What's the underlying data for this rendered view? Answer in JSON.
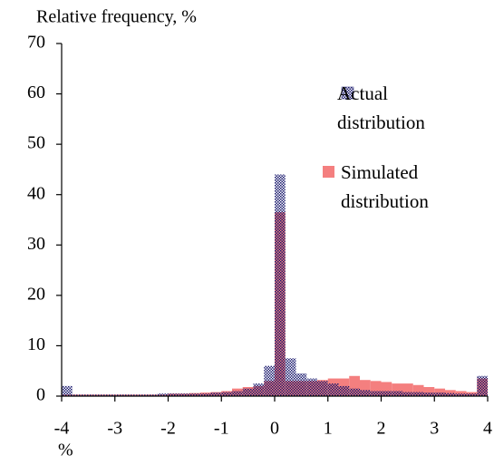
{
  "chart_data": {
    "type": "histogram",
    "title": "Relative frequency, %",
    "x_label": "%",
    "bins": [
      -4,
      -3.8,
      -3.6,
      -3.4,
      -3.2,
      -3,
      -2.8,
      -2.6,
      -2.4,
      -2.2,
      -2,
      -1.8,
      -1.6,
      -1.4,
      -1.2,
      -1,
      -0.8,
      -0.6,
      -0.4,
      -0.2,
      0,
      0.2,
      0.4,
      0.6,
      0.8,
      1,
      1.2,
      1.4,
      1.6,
      1.8,
      2,
      2.2,
      2.4,
      2.6,
      2.8,
      3,
      3.2,
      3.4,
      3.6,
      3.8,
      4
    ],
    "series": [
      {
        "name": "Simulated distribution",
        "color": "#f47f7f",
        "values": [
          0.3,
          0.3,
          0.3,
          0.3,
          0.3,
          0.3,
          0.3,
          0.3,
          0.3,
          0.3,
          0.5,
          0.5,
          0.6,
          0.7,
          0.8,
          1,
          1.5,
          1.8,
          2,
          3,
          36.5,
          3,
          3,
          3,
          3.2,
          3.5,
          3.5,
          4,
          3.2,
          3,
          2.8,
          2.5,
          2.5,
          2.2,
          1.8,
          1.5,
          1.2,
          1,
          0.8,
          3.5
        ]
      },
      {
        "name": "Actual distribution",
        "color": "#1a1a6e",
        "values": [
          2,
          0.3,
          0.3,
          0.3,
          0.3,
          0.3,
          0.3,
          0.3,
          0.3,
          0.5,
          0.5,
          0.5,
          0.5,
          0.5,
          0.7,
          0.8,
          1,
          1.5,
          2.5,
          6,
          44,
          7.5,
          4.5,
          3.5,
          3,
          2.5,
          2,
          1.5,
          1.2,
          1,
          1,
          1,
          0.8,
          0.8,
          0.7,
          0.7,
          0.6,
          0.5,
          0.5,
          4
        ]
      }
    ],
    "xlim": [
      -4,
      4
    ],
    "xticks": [
      -4,
      -3,
      -2,
      -1,
      0,
      1,
      2,
      3,
      4
    ],
    "ylim": [
      0,
      70
    ],
    "yticks": [
      0,
      10,
      20,
      30,
      40,
      50,
      60,
      70
    ]
  }
}
